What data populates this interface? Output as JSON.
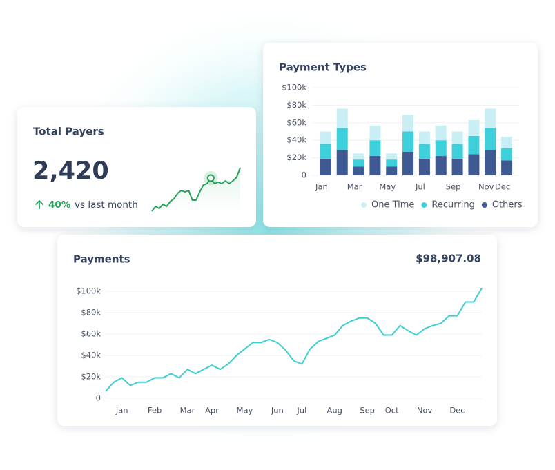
{
  "chart_data": [
    {
      "type": "sparkline",
      "title": "Total Payers",
      "kpi": "2,420",
      "change": "40%",
      "change_note": "vs last month",
      "values": [
        0,
        7,
        4,
        10,
        7,
        14,
        18,
        26,
        30,
        28,
        30,
        16,
        16,
        28,
        38,
        40,
        48,
        40,
        42,
        40,
        44,
        40,
        44,
        49,
        63
      ],
      "highlight_index": 16,
      "color": "#22a35a"
    },
    {
      "type": "stacked_bar",
      "title": "Payment Types",
      "categories": [
        "Jan",
        null,
        "Mar",
        null,
        "May",
        null,
        "Jul",
        null,
        "Sep",
        null,
        "Nov",
        "Dec"
      ],
      "series": [
        {
          "name": "One Time",
          "color": "#c9eff5",
          "values": [
            14000,
            22000,
            7000,
            17000,
            7000,
            19000,
            14000,
            17000,
            14000,
            18000,
            22000,
            13000
          ]
        },
        {
          "name": "Recurring",
          "color": "#3dd0da",
          "values": [
            17000,
            25000,
            8000,
            18000,
            8000,
            23000,
            17000,
            18000,
            17000,
            21000,
            25000,
            14000
          ]
        },
        {
          "name": "Others",
          "color": "#3f5a93",
          "values": [
            19000,
            29000,
            10000,
            22000,
            10000,
            27000,
            19000,
            22000,
            19000,
            24000,
            29000,
            17000
          ]
        }
      ],
      "ylim": [
        0,
        100000
      ],
      "yticks": [
        0,
        {
          "value": 20000,
          "label": "$20k"
        },
        {
          "value": 40000,
          "label": "$40k"
        },
        {
          "value": 60000,
          "label": "$60k"
        },
        {
          "value": 80000,
          "label": "$80k"
        },
        {
          "value": 100000,
          "label": "$100k"
        }
      ],
      "grid": true,
      "legend": "bottom-right"
    },
    {
      "type": "line",
      "title": "Payments",
      "total": "$98,907.08",
      "categories": [
        null,
        null,
        "Jan",
        null,
        null,
        null,
        "Feb",
        null,
        null,
        null,
        "Mar",
        null,
        null,
        "Apr",
        null,
        null,
        null,
        "May",
        null,
        null,
        null,
        "Jun",
        null,
        null,
        "Jul",
        null,
        null,
        null,
        "Aug",
        null,
        null,
        null,
        "Sep",
        null,
        null,
        "Oct",
        null,
        null,
        null,
        "Nov",
        null,
        null,
        null,
        "Dec",
        null,
        null,
        null
      ],
      "values": [
        6500,
        15000,
        19000,
        12000,
        15000,
        15000,
        19000,
        19000,
        23000,
        19000,
        27000,
        23000,
        27000,
        31000,
        27000,
        32000,
        40000,
        46000,
        52000,
        52000,
        55000,
        52000,
        45000,
        35000,
        32000,
        46000,
        53000,
        56000,
        59000,
        68000,
        72000,
        75000,
        75000,
        70000,
        59000,
        59000,
        68000,
        63000,
        59000,
        65000,
        68000,
        70000,
        77000,
        77000,
        90000,
        90000,
        103000
      ],
      "color": "#3ccfd0",
      "ylim": [
        0,
        100000
      ],
      "yticks": [
        0,
        {
          "value": 20000,
          "label": "$20k"
        },
        {
          "value": 40000,
          "label": "$40k"
        },
        {
          "value": 60000,
          "label": "$60k"
        },
        {
          "value": 80000,
          "label": "$80k"
        },
        {
          "value": 100000,
          "label": "$100k"
        }
      ],
      "grid": true
    }
  ]
}
